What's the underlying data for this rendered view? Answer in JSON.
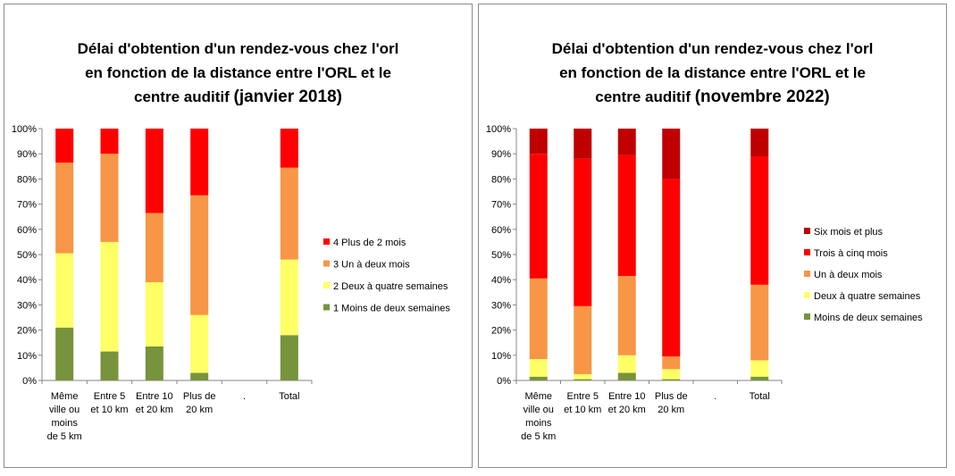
{
  "chart_data": [
    {
      "type": "bar",
      "stacked": true,
      "title": "Délai d'obtention  d'un rendez-vous chez l'orl\nen fonction de la distance  entre l'ORL et le\ncentre auditif",
      "title_suffix": "(janvier 2018)",
      "y_ticks": [
        "0%",
        "10%",
        "20%",
        "30%",
        "40%",
        "50%",
        "60%",
        "70%",
        "80%",
        "90%",
        "100%"
      ],
      "ylim": [
        0,
        100
      ],
      "grid": false,
      "legend_position": "right",
      "categories": [
        [
          "Même",
          "ville ou",
          "moins",
          "de 5 km"
        ],
        [
          "Entre 5",
          "et 10 km"
        ],
        [
          "Entre 10",
          "et 20 km"
        ],
        [
          "Plus de",
          "20 km"
        ],
        [
          "."
        ],
        [
          "Total"
        ]
      ],
      "series": [
        {
          "name": "1 Moins de deux semaines",
          "color": "#77933c",
          "values": [
            21,
            11.5,
            13.5,
            3,
            0,
            18
          ]
        },
        {
          "name": "2 Deux à quatre semaines",
          "color": "#ffff66",
          "values": [
            29.5,
            43.5,
            25.5,
            23,
            0,
            30
          ]
        },
        {
          "name": "3 Un à deux mois",
          "color": "#f79646",
          "values": [
            36,
            35,
            27.5,
            47.5,
            0,
            36.5
          ]
        },
        {
          "name": "4 Plus de 2 mois",
          "color": "#ff0000",
          "values": [
            13.5,
            10,
            33.5,
            26.5,
            0,
            15.5
          ]
        }
      ]
    },
    {
      "type": "bar",
      "stacked": true,
      "title": "Délai d'obtention  d'un rendez-vous chez l'orl\nen fonction de la distance  entre l'ORL et le\ncentre auditif",
      "title_suffix": "(novembre 2022)",
      "y_ticks": [
        "0%",
        "10%",
        "20%",
        "30%",
        "40%",
        "50%",
        "60%",
        "70%",
        "80%",
        "90%",
        "100%"
      ],
      "ylim": [
        0,
        100
      ],
      "grid": false,
      "legend_position": "right",
      "categories": [
        [
          "Même",
          "ville ou",
          "moins",
          "de 5 km"
        ],
        [
          "Entre 5",
          "et 10 km"
        ],
        [
          "Entre 10",
          "et 20 km"
        ],
        [
          "Plus de",
          "20 km"
        ],
        [
          "."
        ],
        [
          "Total"
        ]
      ],
      "series": [
        {
          "name": "Moins de deux semaines",
          "color": "#77933c",
          "values": [
            1.5,
            0.5,
            3,
            0.5,
            0,
            1.5
          ]
        },
        {
          "name": "Deux à quatre semaines",
          "color": "#ffff66",
          "values": [
            7,
            2,
            7,
            4,
            0,
            6.5
          ]
        },
        {
          "name": "Un à deux mois",
          "color": "#f79646",
          "values": [
            32,
            27,
            31.5,
            5,
            0,
            30
          ]
        },
        {
          "name": "Trois à cinq mois",
          "color": "#ff0000",
          "values": [
            49.5,
            58.5,
            48,
            70.5,
            0,
            51
          ]
        },
        {
          "name": "Six mois et plus",
          "color": "#c00000",
          "values": [
            10,
            12,
            10.5,
            20,
            0,
            11
          ]
        }
      ]
    }
  ]
}
